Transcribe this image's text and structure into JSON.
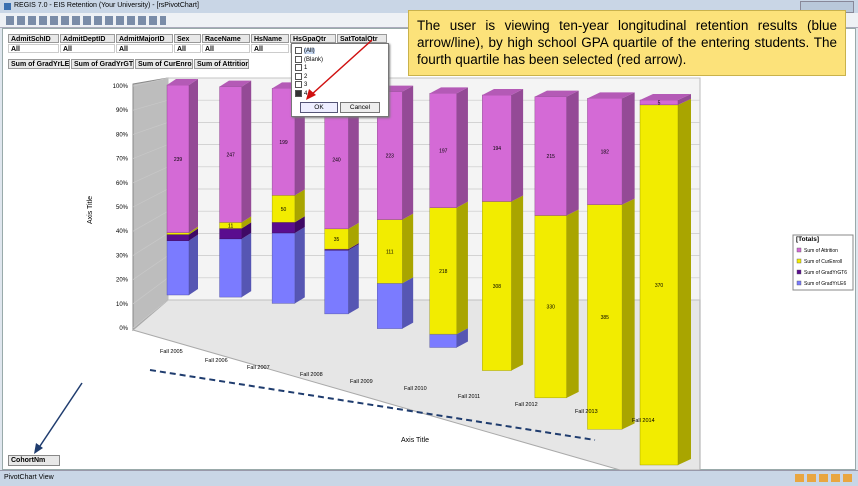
{
  "window": {
    "title": "REGIS 7.0 - EIS Retention (Your University) - [rsPivotChart]"
  },
  "filters": [
    {
      "name": "AdmitSchID",
      "value": "All"
    },
    {
      "name": "AdmitDeptID",
      "value": "All"
    },
    {
      "name": "AdmitMajorID",
      "value": "All"
    },
    {
      "name": "Sex",
      "value": "All"
    },
    {
      "name": "RaceName",
      "value": "All"
    },
    {
      "name": "HsName",
      "value": "All"
    },
    {
      "name": "HsGpaQtr",
      "value": "All"
    },
    {
      "name": "SatTotalQtr",
      "value": "All"
    }
  ],
  "data_fields": [
    "Sum of GradYrLE6",
    "Sum of GradYrGT6",
    "Sum of CurEnroll",
    "Sum of Attrition"
  ],
  "dropdown": {
    "items": [
      "(All)",
      "(Blank)",
      "1",
      "2",
      "3",
      "4"
    ],
    "ok": "OK",
    "cancel": "Cancel"
  },
  "note": "The user is viewing  ten-year longitudinal retention results (blue arrow/line), by high school GPA quartile of the entering students.  The fourth quartile has been selected (red arrow).",
  "category_field": "CohortNm",
  "status": "PivotChart View",
  "chart_data": {
    "type": "bar",
    "stacked": "percent",
    "x_label": "Axis Title",
    "y_label": "Axis Title",
    "legend_title": "[Totals]",
    "legend": "right",
    "categories": [
      "Fall 2005",
      "Fall 2006",
      "Fall 2007",
      "Fall 2008",
      "Fall 2009",
      "Fall 2010",
      "Fall 2011",
      "Fall 2012",
      "Fall 2013",
      "Fall 2014"
    ],
    "series": [
      {
        "name": "Sum of GradYrLE6",
        "color": "#7b7bff",
        "values": [
          88,
          106,
          131,
          110,
          79,
          23,
          0,
          0,
          0,
          0
        ],
        "value_labels": [
          null,
          null,
          null,
          null,
          null,
          null,
          null,
          null,
          null,
          null
        ]
      },
      {
        "name": "Sum of GradYrGT6",
        "color": "#5a0d8f",
        "values": [
          10,
          19,
          20,
          2,
          0,
          0,
          0,
          0,
          0,
          0
        ],
        "value_labels": [
          null,
          null,
          null,
          null,
          null,
          null,
          null,
          null,
          null,
          null
        ]
      },
      {
        "name": "Sum of CurEnroll",
        "color": "#f2ec00",
        "values": [
          3,
          11,
          50,
          35,
          111,
          218,
          308,
          330,
          385,
          370
        ],
        "value_labels": [
          null,
          "11",
          "50",
          "35",
          "111",
          "218",
          "308",
          "330",
          "385",
          "370"
        ]
      },
      {
        "name": "Sum of Attrition",
        "color": "#d46ad6",
        "values": [
          239,
          247,
          199,
          240,
          223,
          197,
          194,
          215,
          182,
          5
        ],
        "value_labels": [
          "239",
          "247",
          "199",
          "240",
          "223",
          "197",
          "194",
          "215",
          "182",
          "5"
        ]
      }
    ],
    "ylim": [
      0,
      100
    ],
    "yticks": [
      {
        "value": 0,
        "label": "0%"
      },
      {
        "value": 10,
        "label": "10%"
      },
      {
        "value": 20,
        "label": "20%"
      },
      {
        "value": 30,
        "label": "30%"
      },
      {
        "value": 40,
        "label": "40%"
      },
      {
        "value": 50,
        "label": "50%"
      },
      {
        "value": 60,
        "label": "60%"
      },
      {
        "value": 70,
        "label": "70%"
      },
      {
        "value": 80,
        "label": "80%"
      },
      {
        "value": 90,
        "label": "90%"
      },
      {
        "value": 100,
        "label": "100%"
      }
    ],
    "grid": true
  }
}
